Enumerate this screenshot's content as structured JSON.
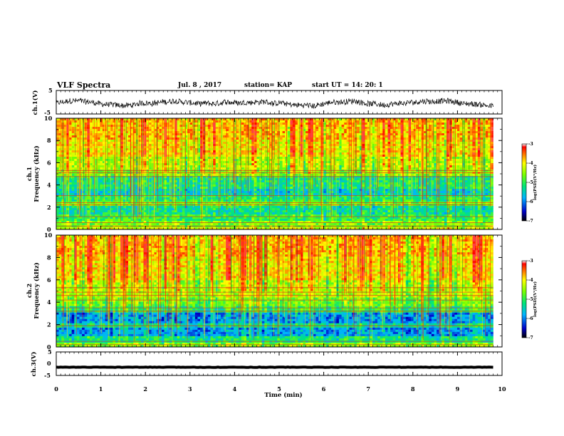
{
  "header": {
    "title": "VLF Spectra",
    "date": "Jul. 8 , 2017",
    "station": "station= KAP",
    "start": "start UT =  14: 20: 1"
  },
  "chart_data": [
    {
      "type": "line",
      "panel": "ch1-waveform",
      "ylabel": "ch.1(V)",
      "yticks": [
        "5",
        "-5"
      ],
      "ylim": [
        -5,
        5
      ],
      "x_range": [
        0,
        9.8
      ],
      "approx_y_mean": -0.5,
      "approx_y_range": [
        -3,
        3
      ]
    },
    {
      "type": "heatmap",
      "panel": "ch1-spectrogram",
      "ylabel_line1": "ch.1",
      "ylabel_line2": "Frequency (kHz)",
      "yticks": [
        "0",
        "2",
        "4",
        "6",
        "8",
        "10"
      ],
      "ylim": [
        0,
        10
      ],
      "x_range": [
        0,
        9.8
      ],
      "z_range": [
        -7,
        -3
      ],
      "colorbar_label": "log(PSD)(V²/Hz)",
      "colorbar_ticks": [
        "-3",
        "-4",
        "-5",
        "-6",
        "-7"
      ],
      "bands_khz": [
        {
          "f0": 0,
          "f1": 0.25,
          "level": -4.2
        },
        {
          "f0": 0.25,
          "f1": 0.8,
          "level": -4.6
        },
        {
          "f0": 0.8,
          "f1": 1.4,
          "level": -5.0
        },
        {
          "f0": 1.4,
          "f1": 2.1,
          "level": -5.3
        },
        {
          "f0": 2.1,
          "f1": 2.5,
          "level": -4.7
        },
        {
          "f0": 2.5,
          "f1": 3.0,
          "level": -5.1
        },
        {
          "f0": 3.0,
          "f1": 3.6,
          "level": -5.5
        },
        {
          "f0": 3.6,
          "f1": 4.8,
          "level": -5.2
        },
        {
          "f0": 4.8,
          "f1": 5.3,
          "level": -4.6
        },
        {
          "f0": 5.3,
          "f1": 6.5,
          "level": -4.4
        },
        {
          "f0": 6.5,
          "f1": 8.0,
          "level": -4.0
        },
        {
          "f0": 8.0,
          "f1": 10.0,
          "level": -3.8
        }
      ],
      "lines_khz": [
        0.3,
        0.6,
        1.15,
        2.2,
        2.4,
        3.05,
        4.75,
        5.1,
        5.3
      ]
    },
    {
      "type": "heatmap",
      "panel": "ch2-spectrogram",
      "ylabel_line1": "ch.2",
      "ylabel_line2": "Frequency (kHz)",
      "yticks": [
        "0",
        "2",
        "4",
        "6",
        "8",
        "10"
      ],
      "ylim": [
        0,
        10
      ],
      "x_range": [
        0,
        9.8
      ],
      "z_range": [
        -7,
        -3
      ],
      "colorbar_label": "log(PSD)(V²/Hz)",
      "colorbar_ticks": [
        "-3",
        "-4",
        "-5",
        "-6",
        "-7"
      ],
      "bands_khz": [
        {
          "f0": 0,
          "f1": 0.3,
          "level": -4.6
        },
        {
          "f0": 0.3,
          "f1": 0.9,
          "level": -5.2
        },
        {
          "f0": 0.9,
          "f1": 1.7,
          "level": -5.9
        },
        {
          "f0": 1.7,
          "f1": 2.1,
          "level": -5.3
        },
        {
          "f0": 2.1,
          "f1": 3.1,
          "level": -5.9
        },
        {
          "f0": 3.1,
          "f1": 3.6,
          "level": -5.1
        },
        {
          "f0": 3.6,
          "f1": 4.5,
          "level": -4.7
        },
        {
          "f0": 4.5,
          "f1": 6.0,
          "level": -4.4
        },
        {
          "f0": 6.0,
          "f1": 8.0,
          "level": -4.0
        },
        {
          "f0": 8.0,
          "f1": 10.0,
          "level": -3.8
        }
      ],
      "lines_khz": [
        0.2,
        0.5,
        1.9,
        3.2,
        3.5,
        4.2,
        4.6,
        4.9,
        5.3
      ]
    },
    {
      "type": "line",
      "panel": "ch3-waveform",
      "ylabel": "ch.3(V)",
      "yticks": [
        "5",
        "0",
        "-5"
      ],
      "ylim": [
        -5,
        5
      ],
      "x_range": [
        0,
        9.8
      ],
      "approx_y_mean": -1.5,
      "xlabel": "Time (min)",
      "xticks": [
        "0",
        "1",
        "2",
        "3",
        "4",
        "5",
        "6",
        "7",
        "8",
        "9",
        "10"
      ],
      "xlim": [
        0,
        10
      ]
    }
  ]
}
